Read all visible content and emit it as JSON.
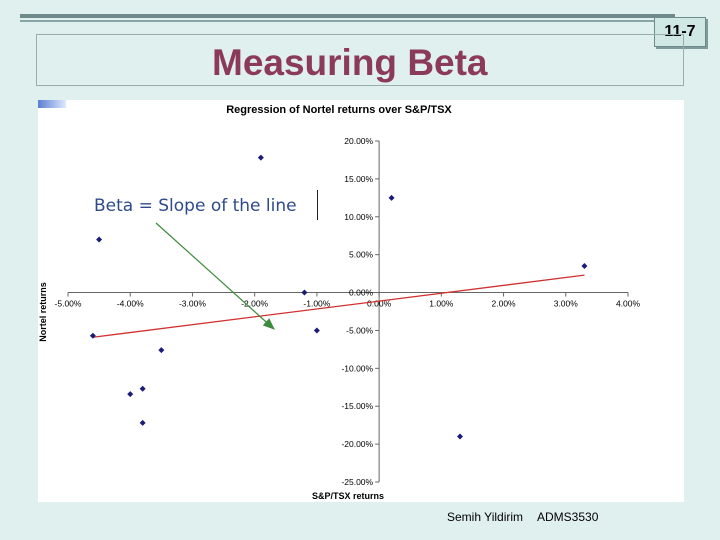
{
  "slide": {
    "number": "11-7",
    "title": "Measuring Beta",
    "footer_author": "Semih Yildirim",
    "footer_course": "ADMS3530",
    "annotation": "Beta = Slope of the line"
  },
  "colors": {
    "title": "#8b3a5a",
    "points": "#1b1b7a",
    "regression": "#d03030",
    "arrow": "#3c8a3c",
    "annotation": "#2e4a8a"
  },
  "chart_data": {
    "type": "scatter",
    "title": "Regression of Nortel returns over S&P/TSX",
    "xlabel": "S&P/TSX returns",
    "ylabel": "Nortel returns",
    "xlim": [
      -5.0,
      4.0
    ],
    "ylim": [
      -25.0,
      20.0
    ],
    "x_ticks": [
      "-5.00%",
      "-4.00%",
      "-3.00%",
      "-2.00%",
      "-1.00%",
      "0.00%",
      "1.00%",
      "2.00%",
      "3.00%",
      "4.00%"
    ],
    "y_ticks": [
      "20.00%",
      "15.00%",
      "10.00%",
      "5.00%",
      "0.00%",
      "-5.00%",
      "-10.00%",
      "-15.00%",
      "-20.00%",
      "-25.00%"
    ],
    "x_tick_values": [
      -5,
      -4,
      -3,
      -2,
      -1,
      0,
      1,
      2,
      3,
      4
    ],
    "y_tick_values": [
      20,
      15,
      10,
      5,
      0,
      -5,
      -10,
      -15,
      -20,
      -25
    ],
    "points": [
      {
        "x": -4.5,
        "y": 7.0
      },
      {
        "x": -4.6,
        "y": -5.7
      },
      {
        "x": -3.5,
        "y": -7.6
      },
      {
        "x": -4.0,
        "y": -13.4
      },
      {
        "x": -3.8,
        "y": -12.7
      },
      {
        "x": -3.8,
        "y": -17.2
      },
      {
        "x": -1.9,
        "y": 17.8
      },
      {
        "x": -1.2,
        "y": 0.0
      },
      {
        "x": -1.0,
        "y": -5.0
      },
      {
        "x": 0.2,
        "y": 12.5
      },
      {
        "x": 1.3,
        "y": -19.0
      },
      {
        "x": 3.3,
        "y": 3.5
      }
    ],
    "regression_line": {
      "x": [
        -4.6,
        3.3
      ],
      "y": [
        -5.9,
        2.3
      ]
    },
    "grid": false,
    "legend": "none"
  }
}
